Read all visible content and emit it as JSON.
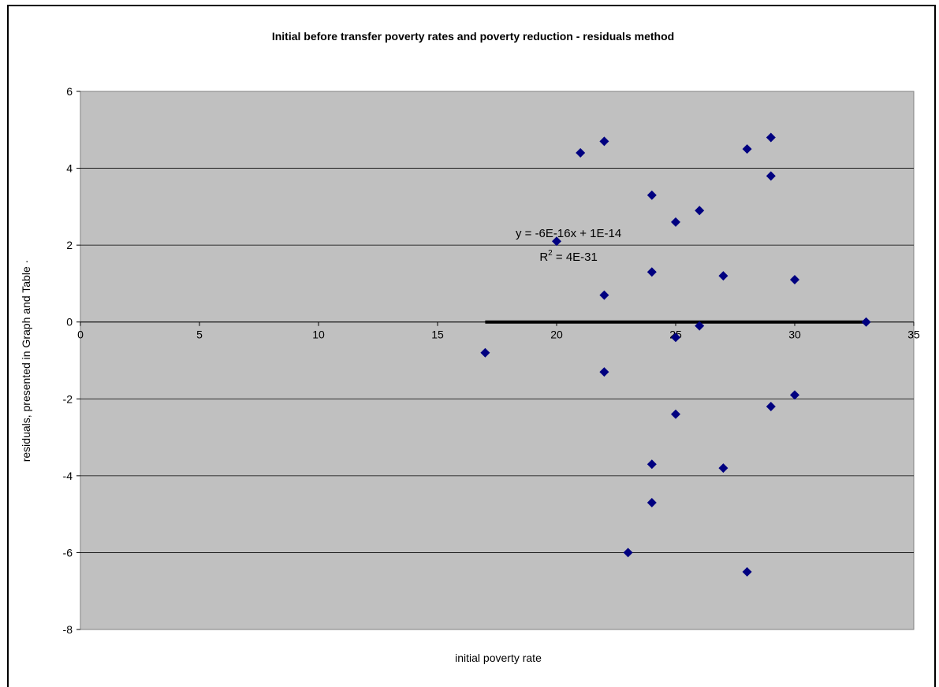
{
  "chart_data": {
    "type": "scatter",
    "title": "Initial before transfer poverty rates and poverty reduction - residuals method",
    "xlabel": "initial poverty rate",
    "ylabel": "residuals, presented in Graph and Table ·",
    "xlim": [
      0,
      35
    ],
    "ylim": [
      -8,
      6
    ],
    "x_ticks": [
      0,
      5,
      10,
      15,
      20,
      25,
      30,
      35
    ],
    "y_ticks": [
      -8,
      -6,
      -4,
      -2,
      0,
      2,
      4,
      6
    ],
    "grid": "horizontal",
    "legend": "none",
    "plot_background": "#c0c0c0",
    "marker_color": "#000080",
    "trendline_color": "#000000",
    "points": [
      [
        17,
        -0.8
      ],
      [
        20,
        2.1
      ],
      [
        21,
        4.4
      ],
      [
        22,
        4.7
      ],
      [
        22,
        0.7
      ],
      [
        22,
        -1.3
      ],
      [
        23,
        -6.0
      ],
      [
        24,
        3.3
      ],
      [
        24,
        1.3
      ],
      [
        24,
        -3.7
      ],
      [
        24,
        -4.7
      ],
      [
        25,
        2.6
      ],
      [
        25,
        -0.4
      ],
      [
        25,
        -2.4
      ],
      [
        26,
        2.9
      ],
      [
        26,
        -0.1
      ],
      [
        27,
        1.2
      ],
      [
        27,
        -3.8
      ],
      [
        28,
        4.5
      ],
      [
        28,
        -6.5
      ],
      [
        29,
        4.8
      ],
      [
        29,
        3.8
      ],
      [
        29,
        -2.2
      ],
      [
        30,
        1.1
      ],
      [
        30,
        -1.9
      ],
      [
        33,
        0.0
      ]
    ],
    "trendline": {
      "x_start": 17,
      "x_end": 33,
      "slope": -6e-16,
      "intercept": 1e-14
    },
    "annotation": {
      "equation": "y = -6E-16x + 1E-14",
      "r2_prefix": "R",
      "r2_sup": "2",
      "r2_suffix": " = 4E-31",
      "x": 20.5,
      "y": 2.0
    }
  }
}
